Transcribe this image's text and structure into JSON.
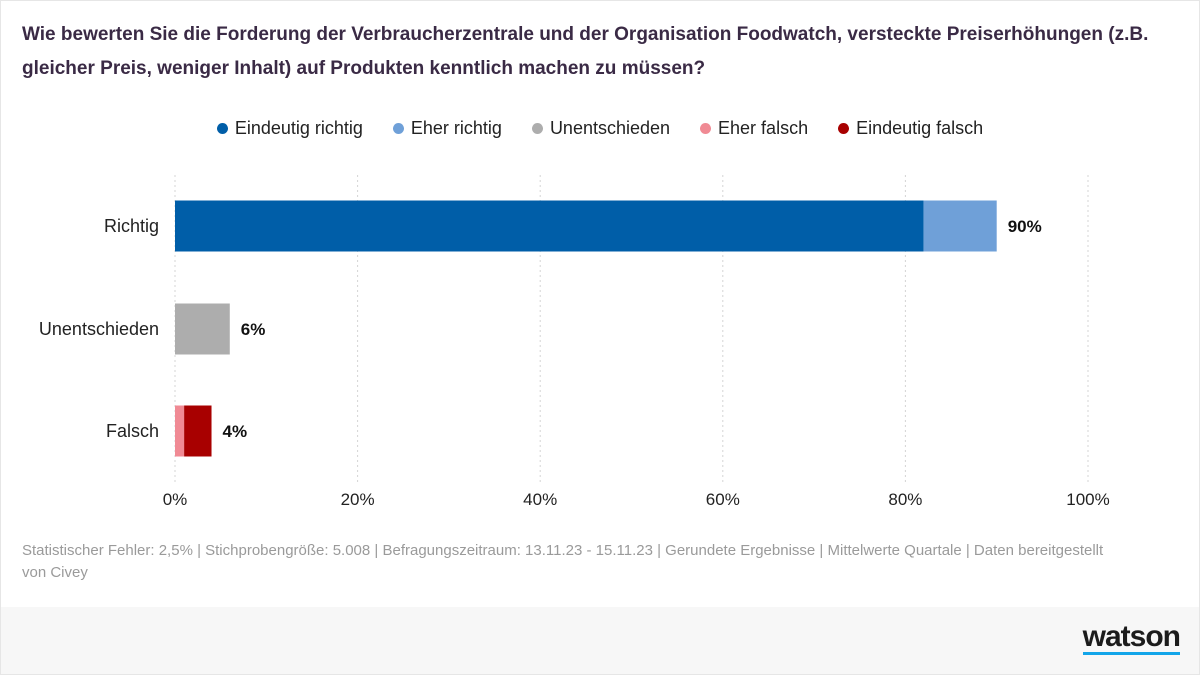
{
  "title": "Wie bewerten Sie die Forderung der Verbraucherzentrale und der Organisation Foodwatch, versteckte Preiserhöhungen (z.B. gleicher Preis, weniger Inhalt) auf Produkten kenntlich machen zu müssen?",
  "legend": [
    {
      "label": "Eindeutig richtig",
      "color": "#005ea8"
    },
    {
      "label": "Eher richtig",
      "color": "#6fa0d8"
    },
    {
      "label": "Unentschieden",
      "color": "#adadad"
    },
    {
      "label": "Eher falsch",
      "color": "#f08a94"
    },
    {
      "label": "Eindeutig falsch",
      "color": "#a80000"
    }
  ],
  "chart_data": {
    "type": "bar",
    "orientation": "horizontal",
    "stacked": true,
    "categories": [
      "Richtig",
      "Unentschieden",
      "Falsch"
    ],
    "series": [
      {
        "name": "Eindeutig richtig",
        "color": "#005ea8",
        "values": [
          82,
          0,
          0
        ]
      },
      {
        "name": "Eher richtig",
        "color": "#6fa0d8",
        "values": [
          8,
          0,
          0
        ]
      },
      {
        "name": "Unentschieden",
        "color": "#adadad",
        "values": [
          0,
          6,
          0
        ]
      },
      {
        "name": "Eher falsch",
        "color": "#f08a94",
        "values": [
          0,
          0,
          1
        ]
      },
      {
        "name": "Eindeutig falsch",
        "color": "#a80000",
        "values": [
          0,
          0,
          3
        ]
      }
    ],
    "totals": [
      90,
      6,
      4
    ],
    "total_labels": [
      "90%",
      "6%",
      "4%"
    ],
    "xlim": [
      0,
      100
    ],
    "xticks": [
      0,
      20,
      40,
      60,
      80,
      100
    ],
    "xtick_labels": [
      "0%",
      "20%",
      "40%",
      "60%",
      "80%",
      "100%"
    ],
    "grid": "vertical dotted",
    "legend_position": "top-center"
  },
  "footnote": "Statistischer Fehler: 2,5% | Stichprobengröße: 5.008 | Befragungszeitraum: 13.11.23 - 15.11.23 | Gerundete Ergebnisse | Mittelwerte Quartale | Daten bereitgestellt von Civey",
  "brand": {
    "logo_text": "watson",
    "accent": "#12a5e9"
  }
}
